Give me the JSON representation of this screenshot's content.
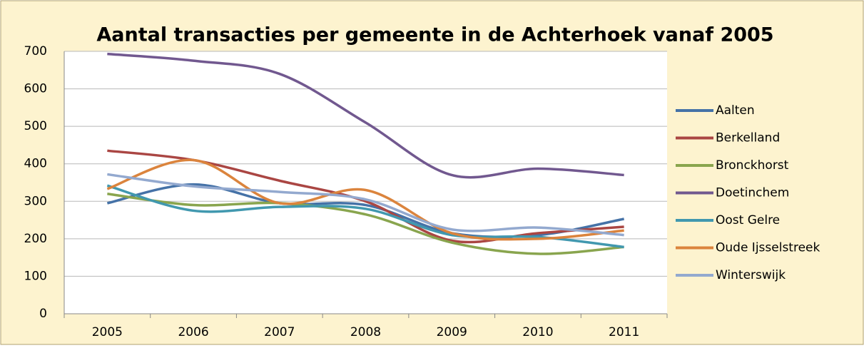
{
  "chart_data": {
    "type": "line",
    "title": "Aantal transacties per gemeente in de Achterhoek vanaf 2005",
    "categories": [
      "2005",
      "2006",
      "2007",
      "2008",
      "2009",
      "2010",
      "2011"
    ],
    "series": [
      {
        "name": "Aalten",
        "color": "#4572a7",
        "values": [
          295,
          345,
          295,
          290,
          215,
          210,
          253
        ]
      },
      {
        "name": "Berkelland",
        "color": "#aa4643",
        "values": [
          435,
          410,
          355,
          300,
          195,
          215,
          232
        ]
      },
      {
        "name": "Bronckhorst",
        "color": "#89a54e",
        "values": [
          320,
          290,
          295,
          265,
          190,
          160,
          178
        ]
      },
      {
        "name": "Doetinchem",
        "color": "#71588f",
        "values": [
          693,
          675,
          640,
          510,
          370,
          387,
          370
        ]
      },
      {
        "name": "Oost Gelre",
        "color": "#4198af",
        "values": [
          342,
          275,
          285,
          280,
          210,
          205,
          178
        ]
      },
      {
        "name": "Oude Ijsselstreek",
        "color": "#db843d",
        "values": [
          333,
          410,
          295,
          330,
          215,
          200,
          222
        ]
      },
      {
        "name": "Winterswijk",
        "color": "#93a9cf",
        "values": [
          372,
          340,
          325,
          305,
          225,
          230,
          210
        ]
      }
    ],
    "ylim": [
      0,
      700
    ],
    "yticks": [
      0,
      100,
      200,
      300,
      400,
      500,
      600,
      700
    ],
    "grid": true,
    "smooth": true,
    "legend": "right"
  }
}
